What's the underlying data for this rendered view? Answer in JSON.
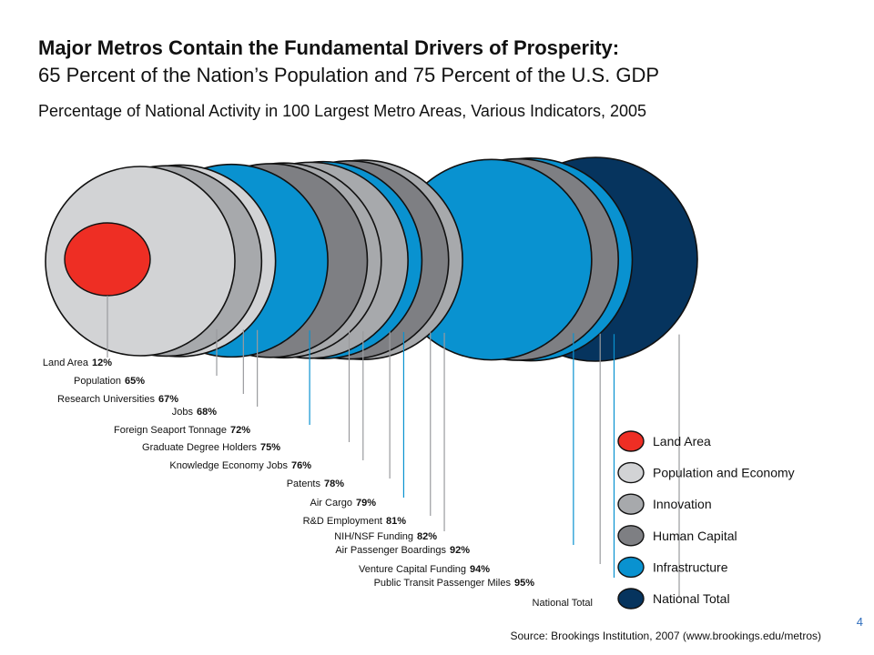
{
  "slide": {
    "title_bold": "Major Metros Contain the Fundamental Drivers of Prosperity:",
    "title_regular": "65 Percent of the Nation’s Population and 75 Percent of the U.S. GDP",
    "subtitle": "Percentage of National Activity in 100 Largest Metro Areas, Various Indicators, 2005",
    "source": "Source: Brookings Institution, 2007 (www.brookings.edu/metros)",
    "page_number": "4"
  },
  "colors": {
    "Land Area": "#ee2e24",
    "Population and Economy": "#d2d3d5",
    "Innovation": "#a7a9ac",
    "Human Capital": "#7e7f83",
    "Infrastructure": "#0992d0",
    "National Total": "#06345e"
  },
  "chart_data": {
    "type": "nested-circles",
    "title": "Percentage of National Activity in 100 Largest Metro Areas, Various Indicators, 2005",
    "unit": "percent of national total",
    "items": [
      {
        "label": "Land Area",
        "value": 12,
        "display": "12%",
        "category": "Land Area"
      },
      {
        "label": "Population",
        "value": 65,
        "display": "65%",
        "category": "Population and Economy"
      },
      {
        "label": "Research Universities",
        "value": 67,
        "display": "67%",
        "category": "Innovation"
      },
      {
        "label": "Jobs",
        "value": 68,
        "display": "68%",
        "category": "Population and Economy"
      },
      {
        "label": "Foreign Seaport Tonnage",
        "value": 72,
        "display": "72%",
        "category": "Infrastructure"
      },
      {
        "label": "Graduate Degree Holders",
        "value": 75,
        "display": "75%",
        "category": "Human Capital"
      },
      {
        "label": "Knowledge Economy Jobs",
        "value": 76,
        "display": "76%",
        "category": "Innovation"
      },
      {
        "label": "Patents",
        "value": 78,
        "display": "78%",
        "category": "Innovation"
      },
      {
        "label": "Air Cargo",
        "value": 79,
        "display": "79%",
        "category": "Infrastructure"
      },
      {
        "label": "R&D Employment",
        "value": 81,
        "display": "81%",
        "category": "Human Capital"
      },
      {
        "label": "NIH/NSF Funding",
        "value": 82,
        "display": "82%",
        "category": "Innovation"
      },
      {
        "label": "Air Passenger Boardings",
        "value": 92,
        "display": "92%",
        "category": "Infrastructure"
      },
      {
        "label": "Venture Capital Funding",
        "value": 94,
        "display": "94%",
        "category": "Human Capital"
      },
      {
        "label": "Public Transit Passenger Miles",
        "value": 95,
        "display": "95%",
        "category": "Infrastructure"
      },
      {
        "label": "National Total",
        "value": 100,
        "display": "",
        "category": "National Total"
      }
    ],
    "legend": [
      "Land Area",
      "Population and Economy",
      "Innovation",
      "Human Capital",
      "Infrastructure",
      "National Total"
    ]
  }
}
